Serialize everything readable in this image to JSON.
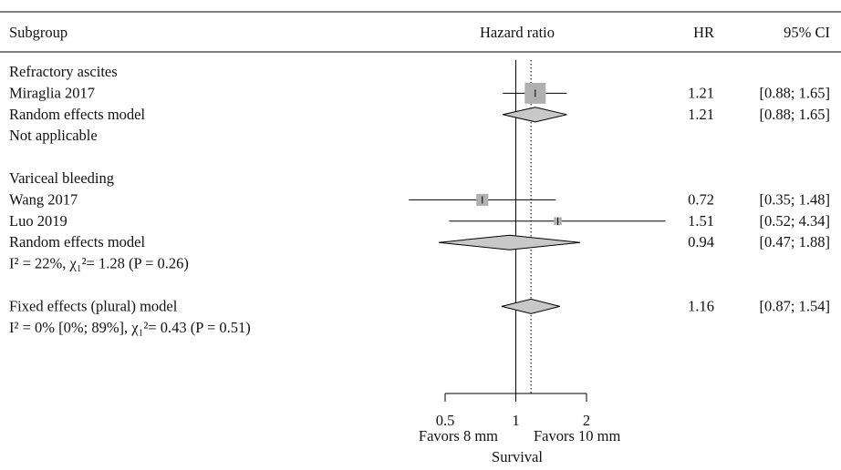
{
  "chart_data": {
    "type": "forest",
    "headers": {
      "subgroup": "Subgroup",
      "plot": "Hazard ratio",
      "hr": "HR",
      "ci": "95% CI"
    },
    "rows": [
      {
        "kind": "group",
        "label": "Refractory ascites"
      },
      {
        "kind": "study",
        "label": "Miraglia 2017",
        "hr": 1.21,
        "lower": 0.88,
        "upper": 1.65,
        "hr_text": "1.21",
        "ci_text": "[0.88; 1.65]",
        "weight": 1.0
      },
      {
        "kind": "summary",
        "label": "Random effects model",
        "hr": 1.21,
        "lower": 0.88,
        "upper": 1.65,
        "hr_text": "1.21",
        "ci_text": "[0.88; 1.65]"
      },
      {
        "kind": "note",
        "label": "Not applicable"
      },
      {
        "kind": "spacer"
      },
      {
        "kind": "group",
        "label": "Variceal bleeding"
      },
      {
        "kind": "study",
        "label": "Wang 2017",
        "hr": 0.72,
        "lower": 0.35,
        "upper": 1.48,
        "hr_text": "0.72",
        "ci_text": "[0.35; 1.48]",
        "weight": 0.45
      },
      {
        "kind": "study",
        "label": "Luo 2019",
        "hr": 1.51,
        "lower": 0.52,
        "upper": 4.34,
        "hr_text": "1.51",
        "ci_text": "[0.52; 4.34]",
        "weight": 0.2
      },
      {
        "kind": "summary",
        "label": "Random effects model",
        "hr": 0.94,
        "lower": 0.47,
        "upper": 1.88,
        "hr_text": "0.94",
        "ci_text": "[0.47; 1.88]"
      },
      {
        "kind": "stat",
        "label": "I² = 22%, χ₁²= 1.28 (P = 0.26)"
      },
      {
        "kind": "spacer"
      },
      {
        "kind": "summary",
        "label": "Fixed effects (plural) model",
        "hr": 1.16,
        "lower": 0.87,
        "upper": 1.54,
        "hr_text": "1.16",
        "ci_text": "[0.87; 1.54]"
      },
      {
        "kind": "stat",
        "label": "I² = 0% [0%; 89%], χ₁²= 0.43 (P = 0.51)"
      }
    ],
    "x_scale": "log",
    "x_range": [
      0.5,
      2
    ],
    "ticks": [
      0.5,
      1,
      2
    ],
    "tick_labels": [
      "0.5",
      "1",
      "2"
    ],
    "reference_line": 1,
    "dotted_line": 1.16,
    "xlabel_left": "Favors 8 mm",
    "xlabel_right": "Favors 10 mm",
    "xlabel_bottom": "Survival",
    "colors": {
      "box": "#b0b0b0",
      "diamond": "#c8c8c8",
      "line": "#000000"
    }
  }
}
